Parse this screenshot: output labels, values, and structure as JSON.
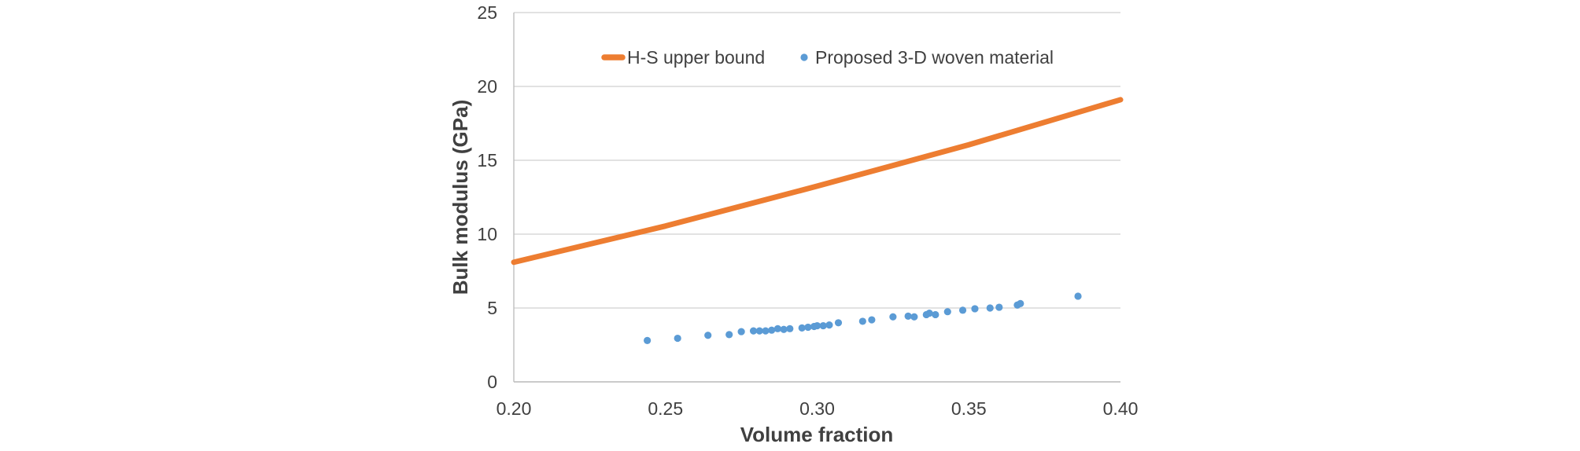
{
  "chart_data": {
    "type": "scatter",
    "title": "",
    "xlabel": "Volume fraction",
    "ylabel": "Bulk modulus (GPa)",
    "xlim": [
      0.2,
      0.4
    ],
    "ylim": [
      0,
      25
    ],
    "x_ticks": [
      "0.20",
      "0.25",
      "0.30",
      "0.35",
      "0.40"
    ],
    "y_ticks": [
      "0",
      "5",
      "10",
      "15",
      "20",
      "25"
    ],
    "grid": true,
    "legend_position": "top-center-inside",
    "colors": {
      "text": "#404040",
      "gridline": "#D9D9D9",
      "axis_line": "#BFBFBF",
      "background": "#FFFFFF"
    },
    "series": [
      {
        "name": "H-S upper bound",
        "type": "line",
        "color": "#ED7D31",
        "stroke_width": 7,
        "points": [
          [
            0.2,
            8.1
          ],
          [
            0.25,
            10.55
          ],
          [
            0.3,
            13.25
          ],
          [
            0.35,
            16.05
          ],
          [
            0.4,
            19.1
          ]
        ]
      },
      {
        "name": "Proposed 3-D woven material",
        "type": "scatter",
        "color": "#5B9BD5",
        "marker_radius": 4.6,
        "points": [
          [
            0.244,
            2.8
          ],
          [
            0.254,
            2.95
          ],
          [
            0.264,
            3.15
          ],
          [
            0.271,
            3.2
          ],
          [
            0.275,
            3.4
          ],
          [
            0.279,
            3.45
          ],
          [
            0.281,
            3.45
          ],
          [
            0.283,
            3.45
          ],
          [
            0.285,
            3.5
          ],
          [
            0.287,
            3.6
          ],
          [
            0.289,
            3.55
          ],
          [
            0.291,
            3.6
          ],
          [
            0.295,
            3.65
          ],
          [
            0.297,
            3.7
          ],
          [
            0.299,
            3.75
          ],
          [
            0.3,
            3.8
          ],
          [
            0.302,
            3.8
          ],
          [
            0.304,
            3.85
          ],
          [
            0.307,
            4.0
          ],
          [
            0.315,
            4.1
          ],
          [
            0.318,
            4.2
          ],
          [
            0.325,
            4.4
          ],
          [
            0.33,
            4.45
          ],
          [
            0.332,
            4.4
          ],
          [
            0.336,
            4.55
          ],
          [
            0.337,
            4.65
          ],
          [
            0.339,
            4.55
          ],
          [
            0.343,
            4.75
          ],
          [
            0.348,
            4.85
          ],
          [
            0.352,
            4.95
          ],
          [
            0.357,
            5.0
          ],
          [
            0.36,
            5.05
          ],
          [
            0.366,
            5.2
          ],
          [
            0.367,
            5.3
          ],
          [
            0.386,
            5.8
          ]
        ]
      }
    ]
  }
}
